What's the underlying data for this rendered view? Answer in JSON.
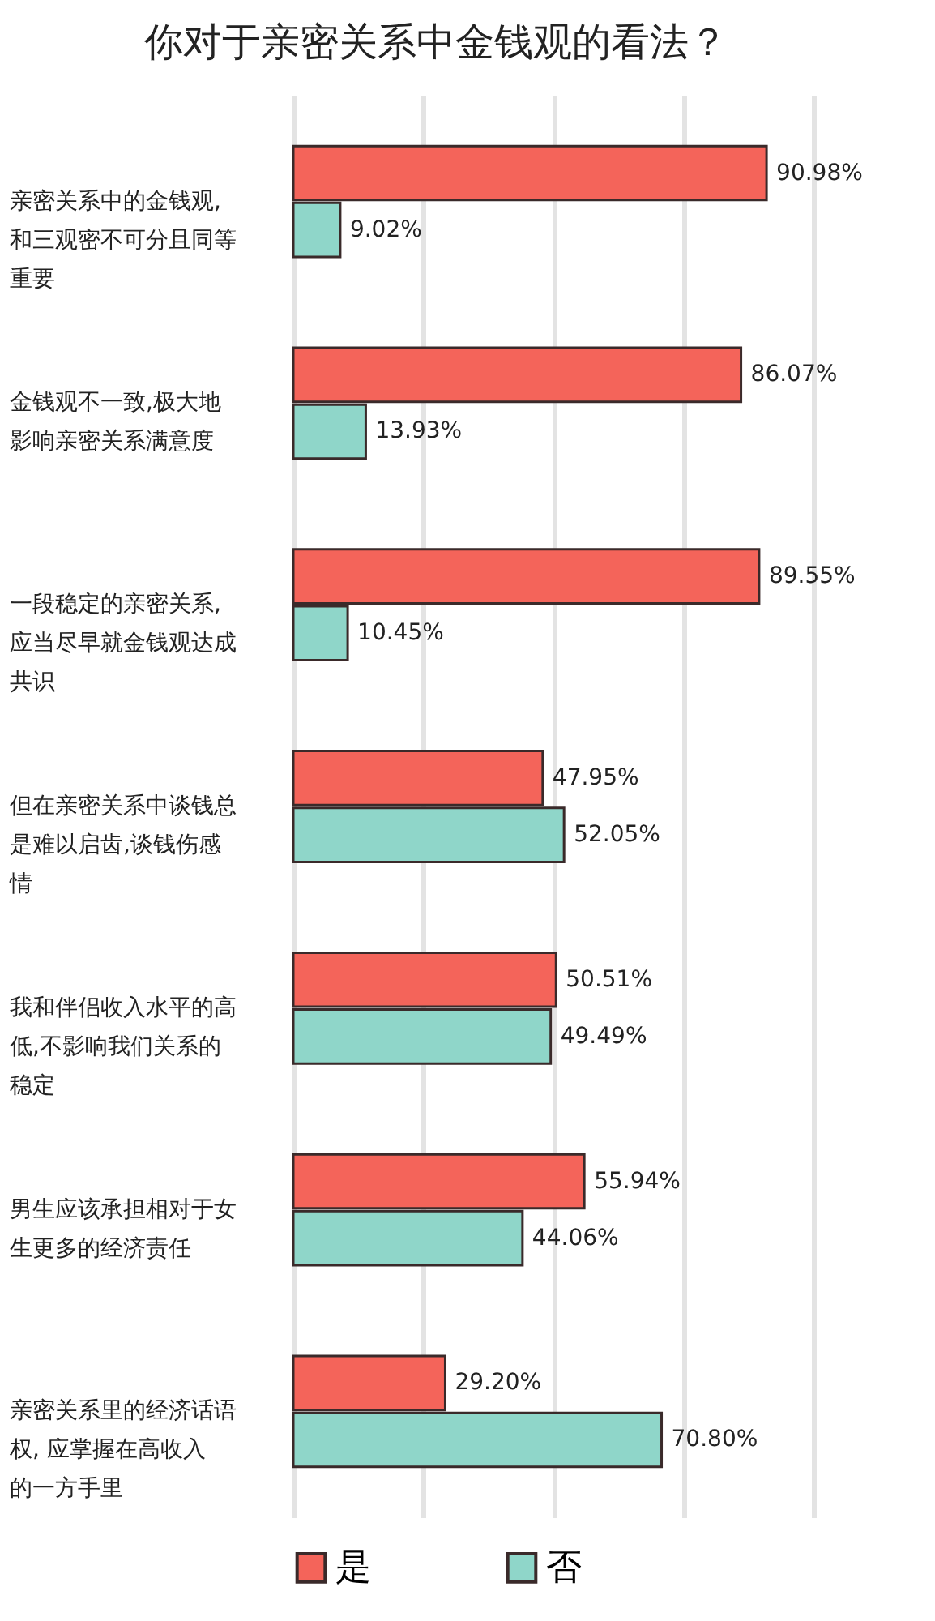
{
  "chart_data": {
    "type": "bar",
    "orientation": "horizontal",
    "title": "你对于亲密关系中金钱观的看法？",
    "categories": [
      "亲密关系中的金钱观,和三观密不可分且同等重要",
      "金钱观不一致,极大地影响亲密关系满意度",
      "一段稳定的亲密关系,应当尽早就金钱观达成共识",
      "但在亲密关系中谈钱总是难以启齿,谈钱伤感情",
      "我和伴侣收入水平的高低,不影响我们关系的稳定",
      "男生应该承担相对于女生更多的经济责任",
      "亲密关系里的经济话语权, 应掌握在高收入的一方手里"
    ],
    "series": [
      {
        "name": "是",
        "color": "#f4645a",
        "values": [
          90.98,
          86.07,
          89.55,
          47.95,
          50.51,
          55.94,
          29.2
        ],
        "value_labels": [
          "90.98%",
          "86.07%",
          "89.55%",
          "47.95%",
          "50.51%",
          "55.94%",
          "29.20%"
        ]
      },
      {
        "name": "否",
        "color": "#8fd6c9",
        "values": [
          9.02,
          13.93,
          10.45,
          52.05,
          49.49,
          44.06,
          70.8
        ],
        "value_labels": [
          "9.02%",
          "13.93%",
          "10.45%",
          "52.05%",
          "49.49%",
          "44.06%",
          "70.80%"
        ]
      }
    ],
    "xlim": [
      0,
      100
    ],
    "xticks": [
      {
        "value": 0,
        "label": null
      },
      {
        "value": 25,
        "label": null
      },
      {
        "value": 50,
        "label": null
      },
      {
        "value": 75,
        "label": null
      },
      {
        "value": 100,
        "label": null
      }
    ],
    "grid": "x",
    "legend": "bottom",
    "tick_labels": "y"
  }
}
